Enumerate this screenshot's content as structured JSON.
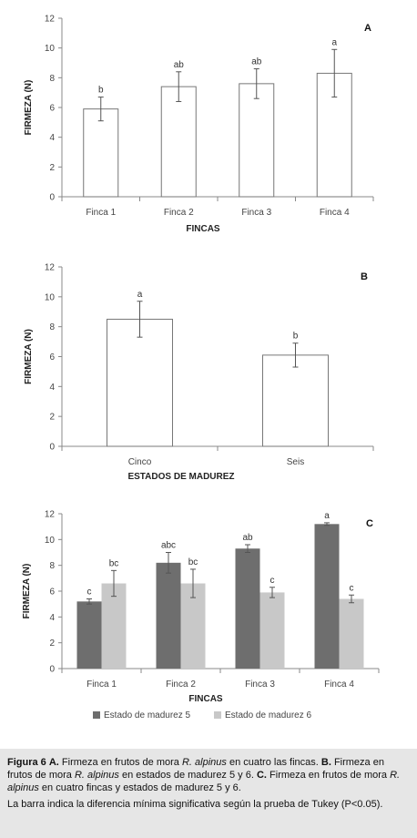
{
  "caption": {
    "fig_label": "Figura 6",
    "a_label": "A.",
    "a_text_pre": "Firmeza en frutos de mora",
    "species": "R. alpinus",
    "a_text_post": "en  cuatro las fincas.",
    "b_label": "B.",
    "b_text_pre": "Firmeza en frutos de mora",
    "b_text_post": "en  estados de madurez 5 y 6.",
    "c_label": "C.",
    "c_text_pre": "Firmeza en frutos de mora",
    "c_text_post": "en  cuatro fincas y estados de madurez 5 y 6.",
    "note": "La barra indica la diferencia mínima significativa según la prueba de Tukey (P<0.05)."
  },
  "chart_data": [
    {
      "type": "bar",
      "panel_label": "A",
      "title": "",
      "xlabel": "FINCAS",
      "ylabel": "FIRMEZA (N)",
      "ylim": [
        0,
        12
      ],
      "yticks": [
        0,
        2,
        4,
        6,
        8,
        10,
        12
      ],
      "categories": [
        "Finca 1",
        "Finca 2",
        "Finca 3",
        "Finca 4"
      ],
      "series": [
        {
          "values": [
            5.9,
            7.4,
            7.6,
            8.3
          ],
          "errors": [
            0.8,
            1.0,
            1.0,
            1.6
          ],
          "letters": [
            "b",
            "ab",
            "ab",
            "a"
          ],
          "color": "#ffffff"
        }
      ],
      "grid": false
    },
    {
      "type": "bar",
      "panel_label": "B",
      "title": "",
      "xlabel": "ESTADOS DE MADUREZ",
      "ylabel": "FIRMEZA (N)",
      "ylim": [
        0,
        12
      ],
      "yticks": [
        0,
        2,
        4,
        6,
        8,
        10,
        12
      ],
      "categories": [
        "Cinco",
        "Seis"
      ],
      "series": [
        {
          "values": [
            8.5,
            6.1
          ],
          "errors": [
            1.2,
            0.8
          ],
          "letters": [
            "a",
            "b"
          ],
          "color": "#ffffff"
        }
      ],
      "grid": false
    },
    {
      "type": "bar",
      "panel_label": "C",
      "title": "",
      "xlabel": "FINCAS",
      "ylabel": "FIRMEZA (N)",
      "ylim": [
        0,
        12
      ],
      "yticks": [
        0,
        2,
        4,
        6,
        8,
        10,
        12
      ],
      "categories": [
        "Finca 1",
        "Finca 2",
        "Finca 3",
        "Finca 4"
      ],
      "series": [
        {
          "name": "Estado de madurez 5",
          "values": [
            5.2,
            8.2,
            9.3,
            11.2
          ],
          "errors": [
            0.2,
            0.8,
            0.3,
            0.1
          ],
          "letters": [
            "c",
            "abc",
            "ab",
            "a"
          ],
          "color": "#6e6e6e"
        },
        {
          "name": "Estado de madurez 6",
          "values": [
            6.6,
            6.6,
            5.9,
            5.4
          ],
          "errors": [
            1.0,
            1.1,
            0.4,
            0.3
          ],
          "letters": [
            "bc",
            "bc",
            "c",
            "c"
          ],
          "color": "#c8c8c8"
        }
      ],
      "legend_position": "bottom",
      "grid": false
    }
  ]
}
